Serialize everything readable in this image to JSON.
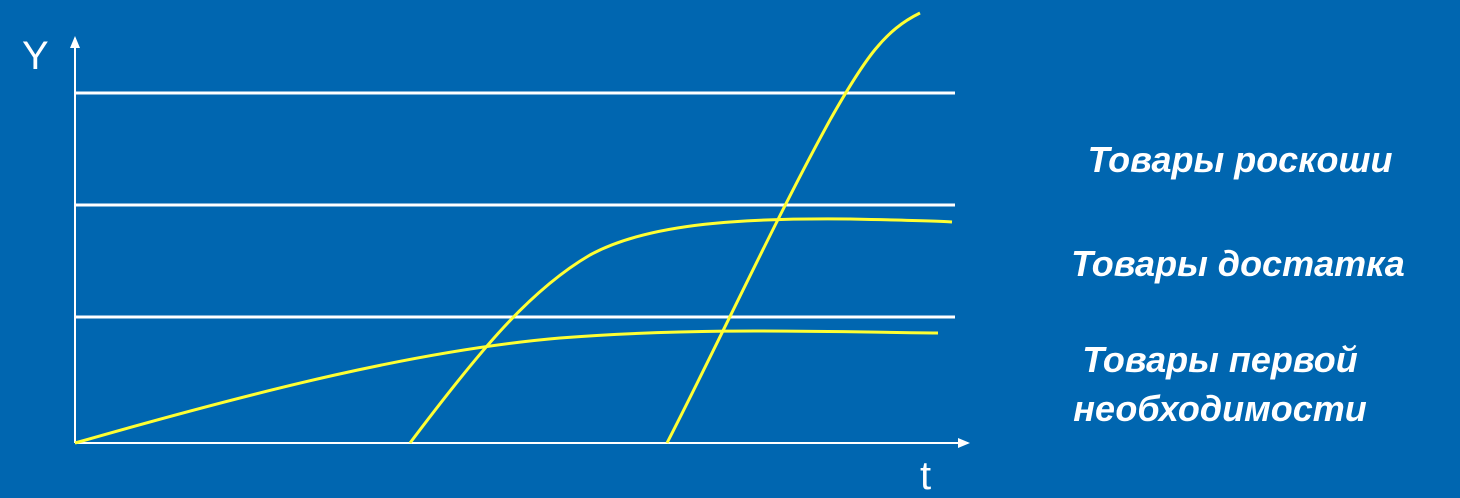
{
  "axes": {
    "y_label": "Y",
    "x_label": "t"
  },
  "levels": {
    "luxury_label": "Товары роскоши",
    "comfort_label": "Товары достатка",
    "basic_label_line1": "Товары первой",
    "basic_label_line2": "необходимости"
  },
  "colors": {
    "background": "#0066B0",
    "axes": "#FFFFFF",
    "level_lines": "#FFFFFF",
    "curves": "#FFFF33",
    "text": "#FFFFFF"
  }
}
